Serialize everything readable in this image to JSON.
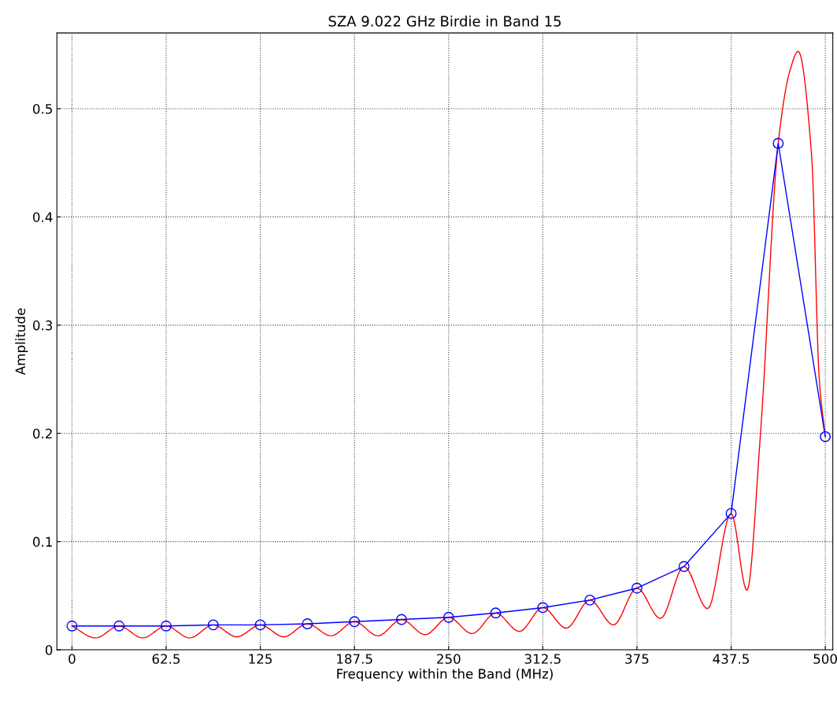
{
  "chart_data": {
    "type": "line",
    "title": "SZA 9.022 GHz Birdie in Band 15",
    "xlabel": "Frequency within the Band (MHz)",
    "ylabel": "Amplitude",
    "xlim": [
      -10,
      505
    ],
    "ylim": [
      0,
      0.57
    ],
    "xticks": [
      0,
      62.5,
      125,
      187.5,
      250,
      312.5,
      375,
      437.5,
      500
    ],
    "yticks": [
      0,
      0.1,
      0.2,
      0.3,
      0.4,
      0.5
    ],
    "grid": true,
    "series": [
      {
        "color": "#ff0000",
        "marker": "none",
        "x": [
          0,
          15.6,
          31.25,
          46.9,
          62.5,
          78.1,
          93.75,
          109.4,
          125,
          140.6,
          156.25,
          171.9,
          187.5,
          203.1,
          218.75,
          234.4,
          250,
          265.6,
          281.25,
          296.9,
          312.5,
          328.1,
          343.75,
          359.4,
          375,
          390.6,
          406.25,
          421.9,
          437.5,
          448,
          457,
          468.75,
          476.5,
          482,
          491,
          496,
          500
        ],
        "values": [
          0.022,
          0.011,
          0.022,
          0.011,
          0.022,
          0.011,
          0.023,
          0.012,
          0.023,
          0.012,
          0.024,
          0.013,
          0.026,
          0.013,
          0.028,
          0.014,
          0.03,
          0.015,
          0.034,
          0.017,
          0.039,
          0.02,
          0.046,
          0.023,
          0.057,
          0.029,
          0.077,
          0.038,
          0.126,
          0.055,
          0.2,
          0.468,
          0.535,
          0.553,
          0.455,
          0.25,
          0.197
        ]
      },
      {
        "color": "#0000ff",
        "marker": "circle",
        "x": [
          0,
          31.25,
          62.5,
          93.75,
          125,
          156.25,
          187.5,
          218.75,
          250,
          281.25,
          312.5,
          343.75,
          375,
          406.25,
          437.5,
          468.75,
          500
        ],
        "values": [
          0.022,
          0.022,
          0.022,
          0.023,
          0.023,
          0.024,
          0.026,
          0.028,
          0.03,
          0.034,
          0.039,
          0.046,
          0.057,
          0.077,
          0.126,
          0.468,
          0.197
        ]
      }
    ]
  }
}
